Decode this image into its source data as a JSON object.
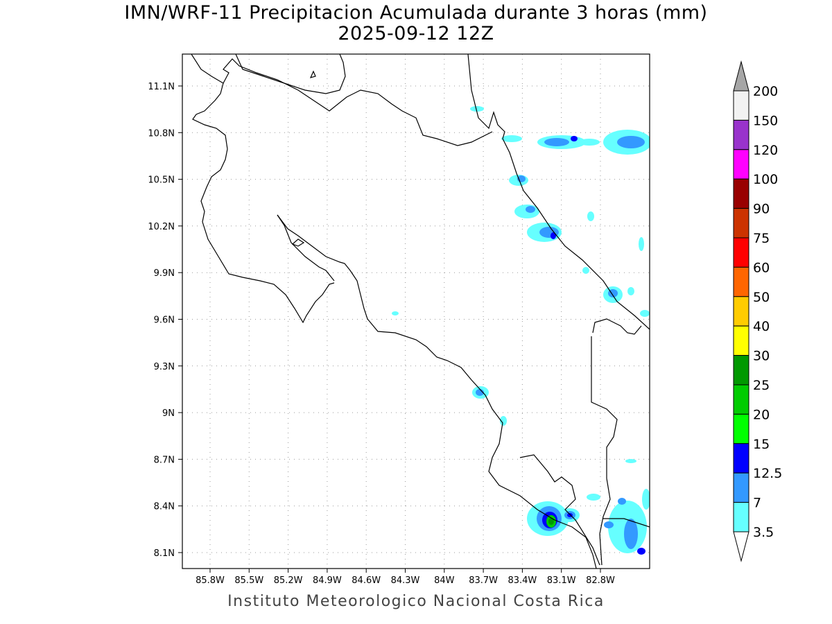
{
  "title": "IMN/WRF-11 Precipitacion Acumulada durante 3 horas (mm)",
  "subtitle": "2025-09-12 12Z",
  "credit": "Instituto Meteorologico Nacional Costa Rica",
  "lat_labels": [
    "11.1N",
    "10.8N",
    "10.5N",
    "10.2N",
    "9.9N",
    "9.6N",
    "9.3N",
    "9N",
    "8.7N",
    "8.4N",
    "8.1N"
  ],
  "lon_labels": [
    "85.8W",
    "85.5W",
    "85.2W",
    "84.9W",
    "84.6W",
    "84.3W",
    "84W",
    "83.7W",
    "83.4W",
    "83.1W",
    "82.8W"
  ],
  "colorbar": {
    "labels": [
      "200",
      "150",
      "120",
      "100",
      "90",
      "75",
      "60",
      "50",
      "40",
      "30",
      "25",
      "20",
      "15",
      "12.5",
      "7",
      "3.5"
    ],
    "colors": [
      "#f2f2f2",
      "#9933cc",
      "#ff00ff",
      "#990000",
      "#cc3300",
      "#ff0000",
      "#ff6600",
      "#ffcc00",
      "#ffff00",
      "#009900",
      "#00cc00",
      "#00ff00",
      "#0000ff",
      "#3399ff",
      "#66ffff"
    ],
    "over_color": "#a6a6a6"
  }
}
